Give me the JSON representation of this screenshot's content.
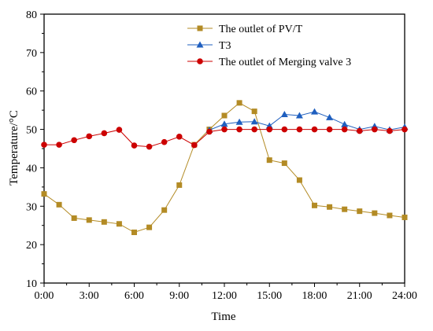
{
  "chart_data": {
    "type": "line",
    "title": "",
    "xlabel": "Time",
    "ylabel": "Temperature/°C",
    "x_ticks": [
      "0:00",
      "3:00",
      "6:00",
      "9:00",
      "12:00",
      "15:00",
      "18:00",
      "21:00",
      "24:00"
    ],
    "y_ticks": [
      "10",
      "20",
      "30",
      "40",
      "50",
      "60",
      "70",
      "80"
    ],
    "xlim": [
      0,
      24
    ],
    "ylim": [
      10,
      80
    ],
    "grid": false,
    "legend_position": "top-right",
    "series": [
      {
        "name": "The outlet of PV/T",
        "color": "#b38b25",
        "marker": "square",
        "x": [
          0,
          1,
          2,
          3,
          4,
          5,
          6,
          7,
          8,
          9,
          10,
          11,
          12,
          13,
          14,
          15,
          16,
          17,
          18,
          19,
          20,
          21,
          22,
          23,
          24
        ],
        "values": [
          33.2,
          30.4,
          26.9,
          26.4,
          25.9,
          25.4,
          23.2,
          24.5,
          29.0,
          35.5,
          46.0,
          50.0,
          53.6,
          56.9,
          54.7,
          42.0,
          41.2,
          36.8,
          30.2,
          29.8,
          29.2,
          28.7,
          28.2,
          27.6,
          27.1
        ]
      },
      {
        "name": "T3",
        "color": "#1f5fbf",
        "marker": "triangle",
        "x": [
          11,
          12,
          13,
          14,
          15,
          16,
          17,
          18,
          19,
          20,
          21,
          22,
          23,
          24
        ],
        "values": [
          49.8,
          51.4,
          51.9,
          52.0,
          50.9,
          53.9,
          53.6,
          54.6,
          53.1,
          51.3,
          50.0,
          50.8,
          49.9,
          50.6
        ]
      },
      {
        "name": "The outlet of Merging valve 3",
        "color": "#cc0000",
        "marker": "circle",
        "x": [
          0,
          1,
          2,
          3,
          4,
          5,
          6,
          7,
          8,
          9,
          10,
          11,
          12,
          13,
          14,
          15,
          16,
          17,
          18,
          19,
          20,
          21,
          22,
          23,
          24
        ],
        "values": [
          46.0,
          46.0,
          47.2,
          48.2,
          49.0,
          49.9,
          45.8,
          45.5,
          46.7,
          48.1,
          45.9,
          49.4,
          50.0,
          50.0,
          50.0,
          50.0,
          50.0,
          50.0,
          50.0,
          50.0,
          50.0,
          49.6,
          50.0,
          49.6,
          50.0
        ]
      }
    ]
  }
}
